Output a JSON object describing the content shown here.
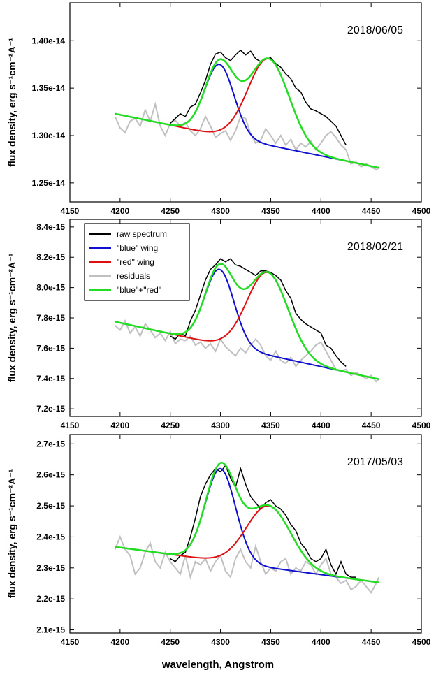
{
  "figure": {
    "xlabel": "wavelength, Angstrom",
    "colors": {
      "raw": "#000000",
      "blue": "#1010d0",
      "red": "#e01010",
      "residuals": "#c0c0c0",
      "sum": "#22dd22"
    }
  },
  "chart_data": [
    {
      "type": "line",
      "date_label": "2018/06/05",
      "ylabel": "flux density, erg s⁻¹cm⁻²A⁻¹",
      "xlim": [
        4150,
        4500
      ],
      "ylim": [
        1.23e-14,
        1.44e-14
      ],
      "xticks": [
        4150,
        4200,
        4250,
        4300,
        4350,
        4400,
        4450,
        4500
      ],
      "yticks": [
        {
          "value": 1.25e-14,
          "label": "1.25e-14"
        },
        {
          "value": 1.3e-14,
          "label": "1.30e-14"
        },
        {
          "value": 1.35e-14,
          "label": "1.35e-14"
        },
        {
          "value": 1.4e-14,
          "label": "1.40e-14"
        }
      ],
      "continuum": {
        "x": [
          4195,
          4458
        ],
        "y": [
          1.323e-14,
          1.266e-14
        ]
      },
      "blue_gaussian": {
        "center": 4299,
        "sigma": 14.5,
        "peak": 1.375e-14
      },
      "red_gaussian": {
        "center": 4348,
        "sigma": 20.5,
        "peak": 1.381e-14
      },
      "series": [
        {
          "name": "raw spectrum",
          "x": [
            4250,
            4255,
            4260,
            4265,
            4270,
            4275,
            4280,
            4285,
            4290,
            4295,
            4300,
            4305,
            4310,
            4315,
            4320,
            4325,
            4330,
            4335,
            4340,
            4345,
            4350,
            4355,
            4360,
            4365,
            4370,
            4375,
            4380,
            4385,
            4390,
            4395,
            4400,
            4405,
            4410,
            4415,
            4420,
            4425
          ],
          "y": [
            1.313e-14,
            1.318e-14,
            1.323e-14,
            1.32e-14,
            1.33e-14,
            1.333e-14,
            1.345e-14,
            1.358e-14,
            1.375e-14,
            1.386e-14,
            1.388e-14,
            1.382e-14,
            1.379e-14,
            1.385e-14,
            1.39e-14,
            1.385e-14,
            1.389e-14,
            1.381e-14,
            1.378e-14,
            1.381e-14,
            1.382e-14,
            1.376e-14,
            1.372e-14,
            1.365e-14,
            1.36e-14,
            1.35e-14,
            1.346e-14,
            1.335e-14,
            1.328e-14,
            1.326e-14,
            1.323e-14,
            1.32e-14,
            1.315e-14,
            1.31e-14,
            1.3e-14,
            1.29e-14
          ]
        },
        {
          "name": "residuals",
          "x": [
            4195,
            4200,
            4205,
            4210,
            4215,
            4220,
            4225,
            4230,
            4235,
            4240,
            4245,
            4250,
            4255,
            4260,
            4265,
            4270,
            4275,
            4280,
            4285,
            4290,
            4295,
            4300,
            4305,
            4310,
            4315,
            4320,
            4325,
            4330,
            4335,
            4340,
            4345,
            4350,
            4355,
            4360,
            4365,
            4370,
            4375,
            4380,
            4385,
            4390,
            4395,
            4400,
            4405,
            4410,
            4415,
            4420,
            4425,
            4430,
            4435,
            4440,
            4445,
            4450,
            4455,
            4458
          ],
          "y": [
            1.32e-14,
            1.308e-14,
            1.303e-14,
            1.315e-14,
            1.318e-14,
            1.31e-14,
            1.327e-14,
            1.315e-14,
            1.333e-14,
            1.31e-14,
            1.3e-14,
            1.313e-14,
            1.316e-14,
            1.31e-14,
            1.314e-14,
            1.305e-14,
            1.3e-14,
            1.307e-14,
            1.32e-14,
            1.31e-14,
            1.298e-14,
            1.302e-14,
            1.305e-14,
            1.295e-14,
            1.305e-14,
            1.32e-14,
            1.318e-14,
            1.302e-14,
            1.292e-14,
            1.295e-14,
            1.307e-14,
            1.3e-14,
            1.292e-14,
            1.3e-14,
            1.29e-14,
            1.296e-14,
            1.285e-14,
            1.292e-14,
            1.288e-14,
            1.294e-14,
            1.285e-14,
            1.292e-14,
            1.3e-14,
            1.304e-14,
            1.298e-14,
            1.29e-14,
            1.285e-14,
            1.27e-14,
            1.272e-14,
            1.267e-14,
            1.27e-14,
            1.267e-14,
            1.264e-14,
            1.266e-14
          ]
        }
      ]
    },
    {
      "type": "line",
      "date_label": "2018/02/21",
      "ylabel": "flux density, erg s⁻¹cm⁻²A⁻¹",
      "xlim": [
        4150,
        4500
      ],
      "ylim": [
        7.15e-15,
        8.45e-15
      ],
      "xticks": [
        4150,
        4200,
        4250,
        4300,
        4350,
        4400,
        4450,
        4500
      ],
      "yticks": [
        {
          "value": 7.2e-15,
          "label": "7.2e-15"
        },
        {
          "value": 7.4e-15,
          "label": "7.4e-15"
        },
        {
          "value": 7.6e-15,
          "label": "7.6e-15"
        },
        {
          "value": 7.8e-15,
          "label": "7.8e-15"
        },
        {
          "value": 8e-15,
          "label": "8.0e-15"
        },
        {
          "value": 8.2e-15,
          "label": "8.2e-15"
        },
        {
          "value": 8.4e-15,
          "label": "8.4e-15"
        }
      ],
      "legend": {
        "position": "top-left",
        "entries": [
          {
            "label": "raw spectrum",
            "series": "raw"
          },
          {
            "label": "\"blue\" wing",
            "series": "blue"
          },
          {
            "label": "\"red\" wing",
            "series": "red"
          },
          {
            "label": "residuals",
            "series": "residuals"
          },
          {
            "label": "\"blue\"+\"red\"",
            "series": "sum"
          }
        ]
      },
      "continuum": {
        "x": [
          4195,
          4458
        ],
        "y": [
          7.775e-15,
          7.395e-15
        ]
      },
      "blue_gaussian": {
        "center": 4299,
        "sigma": 14.5,
        "peak": 8.12e-15
      },
      "red_gaussian": {
        "center": 4347,
        "sigma": 20.5,
        "peak": 8.1e-15
      },
      "series": [
        {
          "name": "raw spectrum",
          "x": [
            4250,
            4255,
            4260,
            4265,
            4270,
            4275,
            4280,
            4285,
            4290,
            4295,
            4300,
            4305,
            4310,
            4315,
            4320,
            4325,
            4330,
            4335,
            4340,
            4345,
            4350,
            4355,
            4360,
            4365,
            4370,
            4375,
            4380,
            4385,
            4390,
            4395,
            4400,
            4405,
            4410,
            4415,
            4420,
            4425
          ],
          "y": [
            7.68e-15,
            7.66e-15,
            7.7e-15,
            7.68e-15,
            7.78e-15,
            7.85e-15,
            7.95e-15,
            8.05e-15,
            8.12e-15,
            8.15e-15,
            8.19e-15,
            8.17e-15,
            8.19e-15,
            8.15e-15,
            8.14e-15,
            8.12e-15,
            8.1e-15,
            8.08e-15,
            8.11e-15,
            8.11e-15,
            8.1e-15,
            8.08e-15,
            8.05e-15,
            7.98e-15,
            7.93e-15,
            7.83e-15,
            7.79e-15,
            7.76e-15,
            7.74e-15,
            7.72e-15,
            7.7e-15,
            7.62e-15,
            7.6e-15,
            7.55e-15,
            7.51e-15,
            7.48e-15
          ]
        },
        {
          "name": "residuals",
          "x": [
            4195,
            4200,
            4205,
            4210,
            4215,
            4220,
            4225,
            4230,
            4235,
            4240,
            4245,
            4250,
            4255,
            4260,
            4265,
            4270,
            4275,
            4280,
            4285,
            4290,
            4295,
            4300,
            4305,
            4310,
            4315,
            4320,
            4325,
            4330,
            4335,
            4340,
            4345,
            4350,
            4355,
            4360,
            4365,
            4370,
            4375,
            4380,
            4385,
            4390,
            4395,
            4400,
            4405,
            4410,
            4415,
            4420,
            4425,
            4430,
            4435,
            4440,
            4445,
            4450,
            4455,
            4458
          ],
          "y": [
            7.75e-15,
            7.72e-15,
            7.78e-15,
            7.7e-15,
            7.74e-15,
            7.68e-15,
            7.76e-15,
            7.72e-15,
            7.67e-15,
            7.7e-15,
            7.65e-15,
            7.71e-15,
            7.63e-15,
            7.66e-15,
            7.65e-15,
            7.68e-15,
            7.62e-15,
            7.64e-15,
            7.6e-15,
            7.63e-15,
            7.58e-15,
            7.66e-15,
            7.61e-15,
            7.58e-15,
            7.55e-15,
            7.6e-15,
            7.57e-15,
            7.62e-15,
            7.66e-15,
            7.62e-15,
            7.55e-15,
            7.52e-15,
            7.58e-15,
            7.52e-15,
            7.5e-15,
            7.54e-15,
            7.48e-15,
            7.52e-15,
            7.55e-15,
            7.58e-15,
            7.62e-15,
            7.64e-15,
            7.58e-15,
            7.52e-15,
            7.46e-15,
            7.45e-15,
            7.46e-15,
            7.42e-15,
            7.44e-15,
            7.42e-15,
            7.4e-15,
            7.42e-15,
            7.38e-15,
            7.4e-15
          ]
        }
      ]
    },
    {
      "type": "line",
      "date_label": "2017/05/03",
      "ylabel": "flux density, erg s⁻¹cm⁻²A⁻¹",
      "xlim": [
        4150,
        4500
      ],
      "ylim": [
        2.09e-15,
        2.73e-15
      ],
      "xticks": [
        4150,
        4200,
        4250,
        4300,
        4350,
        4400,
        4450,
        4500
      ],
      "yticks": [
        {
          "value": 2.1e-15,
          "label": "2.1e-15"
        },
        {
          "value": 2.2e-15,
          "label": "2.2e-15"
        },
        {
          "value": 2.3e-15,
          "label": "2.3e-15"
        },
        {
          "value": 2.4e-15,
          "label": "2.4e-15"
        },
        {
          "value": 2.5e-15,
          "label": "2.5e-15"
        },
        {
          "value": 2.6e-15,
          "label": "2.6e-15"
        },
        {
          "value": 2.7e-15,
          "label": "2.7e-15"
        }
      ],
      "continuum": {
        "x": [
          4195,
          4458
        ],
        "y": [
          2.368e-15,
          2.253e-15
        ]
      },
      "blue_gaussian": {
        "center": 4300,
        "sigma": 15,
        "peak": 2.62e-15
      },
      "red_gaussian": {
        "center": 4348,
        "sigma": 22,
        "peak": 2.5e-15
      },
      "series": [
        {
          "name": "raw spectrum",
          "x": [
            4250,
            4255,
            4260,
            4265,
            4270,
            4275,
            4280,
            4285,
            4290,
            4295,
            4300,
            4305,
            4310,
            4315,
            4320,
            4325,
            4330,
            4335,
            4340,
            4345,
            4350,
            4355,
            4360,
            4365,
            4370,
            4375,
            4380,
            4385,
            4390,
            4395,
            4400,
            4405,
            4410,
            4415,
            4420,
            4425,
            4430,
            4435
          ],
          "y": [
            2.33e-15,
            2.32e-15,
            2.34e-15,
            2.35e-15,
            2.4e-15,
            2.46e-15,
            2.53e-15,
            2.57e-15,
            2.6e-15,
            2.62e-15,
            2.61e-15,
            2.63e-15,
            2.59e-15,
            2.56e-15,
            2.62e-15,
            2.57e-15,
            2.53e-15,
            2.51e-15,
            2.49e-15,
            2.51e-15,
            2.52e-15,
            2.5e-15,
            2.49e-15,
            2.47e-15,
            2.44e-15,
            2.42e-15,
            2.38e-15,
            2.36e-15,
            2.33e-15,
            2.32e-15,
            2.33e-15,
            2.36e-15,
            2.31e-15,
            2.28e-15,
            2.32e-15,
            2.28e-15,
            2.27e-15,
            2.27e-15
          ]
        },
        {
          "name": "residuals",
          "x": [
            4195,
            4200,
            4205,
            4210,
            4215,
            4220,
            4225,
            4230,
            4235,
            4240,
            4245,
            4250,
            4255,
            4260,
            4265,
            4270,
            4275,
            4280,
            4285,
            4290,
            4295,
            4300,
            4305,
            4310,
            4315,
            4320,
            4325,
            4330,
            4335,
            4340,
            4345,
            4350,
            4355,
            4360,
            4365,
            4370,
            4375,
            4380,
            4385,
            4390,
            4395,
            4400,
            4405,
            4410,
            4415,
            4420,
            4425,
            4430,
            4435,
            4440,
            4445,
            4450,
            4455,
            4458
          ],
          "y": [
            2.36e-15,
            2.4e-15,
            2.36e-15,
            2.34e-15,
            2.28e-15,
            2.3e-15,
            2.35e-15,
            2.38e-15,
            2.32e-15,
            2.3e-15,
            2.35e-15,
            2.32e-15,
            2.3e-15,
            2.28e-15,
            2.34e-15,
            2.27e-15,
            2.32e-15,
            2.31e-15,
            2.33e-15,
            2.29e-15,
            2.32e-15,
            2.34e-15,
            2.29e-15,
            2.27e-15,
            2.33e-15,
            2.36e-15,
            2.32e-15,
            2.3e-15,
            2.37e-15,
            2.32e-15,
            2.28e-15,
            2.3e-15,
            2.29e-15,
            2.32e-15,
            2.33e-15,
            2.28e-15,
            2.3e-15,
            2.29e-15,
            2.32e-15,
            2.31e-15,
            2.28e-15,
            2.31e-15,
            2.33e-15,
            2.28e-15,
            2.27e-15,
            2.25e-15,
            2.26e-15,
            2.23e-15,
            2.24e-15,
            2.26e-15,
            2.24e-15,
            2.22e-15,
            2.25e-15,
            2.27e-15
          ]
        }
      ]
    }
  ]
}
